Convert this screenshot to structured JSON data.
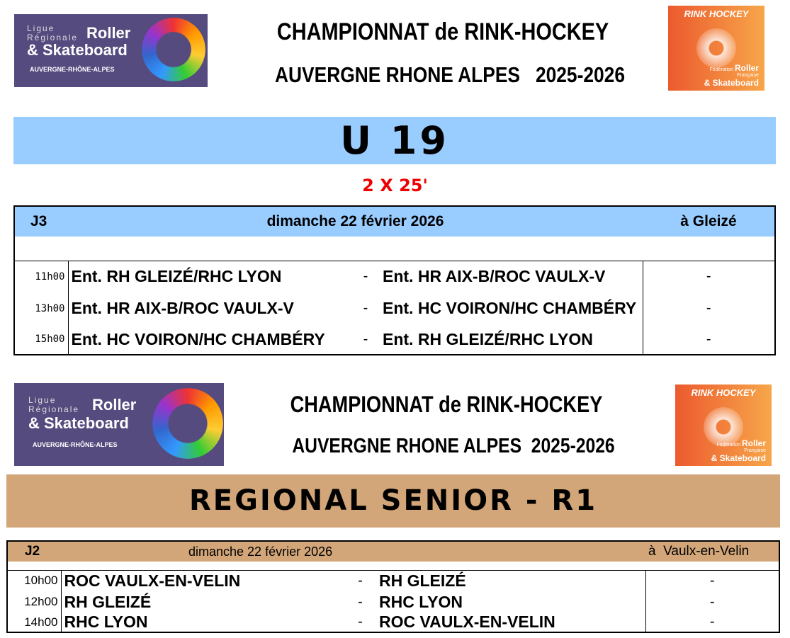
{
  "logos": {
    "ligue": {
      "line1": "Ligue",
      "line2": "Régionale",
      "brand1": "Roller",
      "brand2": "& Skateboard",
      "region": "AUVERGNE-RHÔNE-ALPES"
    },
    "federation": {
      "top": "RINK HOCKEY",
      "line1": "Fédération",
      "line2": "Française",
      "brand1": "Roller",
      "brand2": "& Skateboard"
    }
  },
  "sections": [
    {
      "title1": "CHAMPIONNAT de RINK-HOCKEY",
      "title2": "AUVERGNE RHONE ALPES   2025-2026",
      "category": "U 19",
      "duration": "2 X 25'",
      "banner_color": "#99ccff",
      "header": {
        "round": "J3",
        "date": "dimanche 22 février 2026",
        "venue": "à Gleizé"
      },
      "matches": [
        {
          "time": "11h00",
          "home": "Ent. RH GLEIZÉ/RHC LYON",
          "sep": "-",
          "away": "Ent. HR AIX-B/ROC VAULX-V",
          "score": "-"
        },
        {
          "time": "13h00",
          "home": "Ent. HR AIX-B/ROC VAULX-V",
          "sep": "-",
          "away": "Ent. HC VOIRON/HC CHAMBÉRY",
          "score": "-"
        },
        {
          "time": "15h00",
          "home": "Ent. HC VOIRON/HC CHAMBÉRY",
          "sep": "-",
          "away": "Ent. RH GLEIZÉ/RHC LYON",
          "score": "-"
        }
      ]
    },
    {
      "title1": "CHAMPIONNAT de RINK-HOCKEY",
      "title2": "AUVERGNE RHONE ALPES  2025-2026",
      "category": "REGIONAL SENIOR - R1",
      "banner_color": "#d2a679",
      "header": {
        "round": "J2",
        "date": "dimanche 22 février 2026",
        "venue": "à  Vaulx-en-Velin"
      },
      "matches": [
        {
          "time": "10h00",
          "home": "ROC VAULX-EN-VELIN",
          "sep": "-",
          "away": "RH GLEIZÉ",
          "score": "-"
        },
        {
          "time": "12h00",
          "home": "RH GLEIZÉ",
          "sep": "-",
          "away": "RHC LYON",
          "score": "-"
        },
        {
          "time": "14h00",
          "home": "RHC LYON",
          "sep": "-",
          "away": "ROC VAULX-EN-VELIN",
          "score": "-"
        }
      ]
    }
  ]
}
